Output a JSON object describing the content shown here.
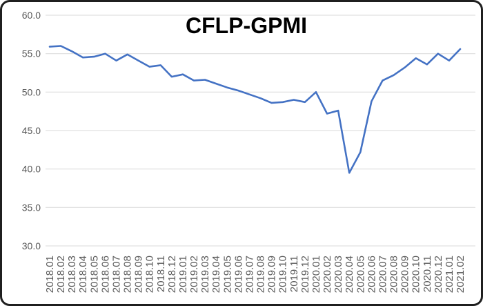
{
  "chart_data": {
    "type": "line",
    "title": "CFLP-GPMI",
    "categories": [
      "2018.01",
      "2018.02",
      "2018.03",
      "2018.04",
      "2018.05",
      "2018.06",
      "2018.07",
      "2018.08",
      "2018.09",
      "2018.10",
      "2018.11",
      "2018.12",
      "2019.01",
      "2019.02",
      "2019.03",
      "2019.04",
      "2019.05",
      "2019.06",
      "2019.07",
      "2019.08",
      "2019.09",
      "2019.10",
      "2019.11",
      "2019.12",
      "2020.01",
      "2020.02",
      "2020.03",
      "2020.04",
      "2020.05",
      "2020.06",
      "2020.07",
      "2020.08",
      "2020.09",
      "2020.10",
      "2020.11",
      "2020.12",
      "2021.01",
      "2021.02"
    ],
    "series": [
      {
        "name": "CFLP-GPMI",
        "color": "#4472C4",
        "values": [
          55.9,
          56.0,
          55.3,
          54.5,
          54.6,
          55.0,
          54.1,
          54.9,
          54.1,
          53.3,
          53.5,
          52.0,
          52.3,
          51.5,
          51.6,
          51.1,
          50.6,
          50.2,
          49.7,
          49.2,
          48.6,
          48.7,
          49.0,
          48.7,
          50.0,
          47.2,
          47.6,
          39.5,
          42.2,
          48.8,
          51.5,
          52.2,
          53.2,
          54.4,
          53.6,
          55.0,
          54.1,
          55.6
        ]
      }
    ],
    "ylim": [
      30,
      60
    ],
    "yticks": [
      {
        "value": 30,
        "label": "30.0"
      },
      {
        "value": 35,
        "label": "35.0"
      },
      {
        "value": 40,
        "label": "40.0"
      },
      {
        "value": 45,
        "label": "45.0"
      },
      {
        "value": 50,
        "label": "50.0"
      },
      {
        "value": 55,
        "label": "55.0"
      },
      {
        "value": 60,
        "label": "60.0"
      }
    ],
    "xlabel": "",
    "ylabel": "",
    "legend": "none",
    "grid": "horizontal",
    "gridline_color": "#D9D9D9",
    "axis_text_color": "#595959",
    "title_color": "#000000",
    "frame": {
      "border_color": "#1f1f1f",
      "background": "#FFFFFF"
    }
  }
}
